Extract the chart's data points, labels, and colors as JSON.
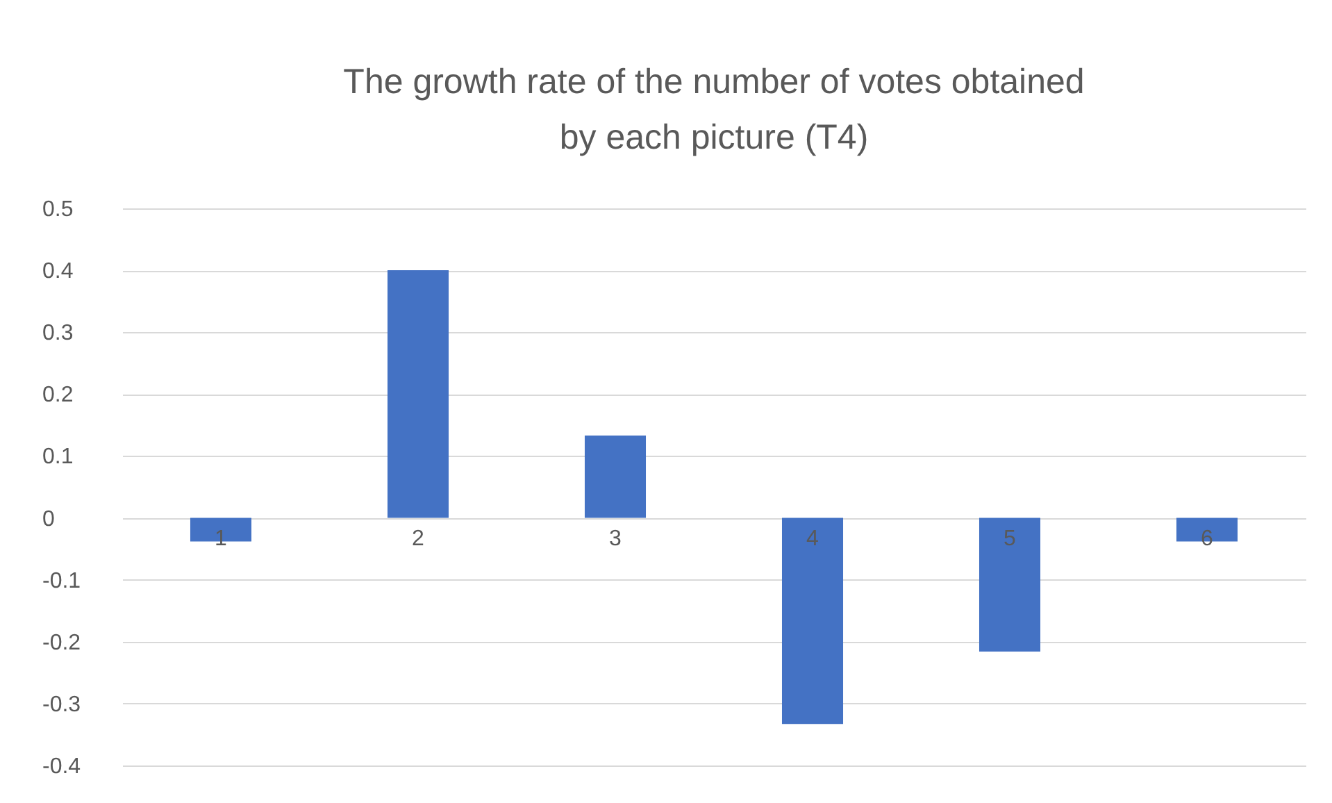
{
  "chart_data": {
    "type": "bar",
    "title": "The growth rate of the number of votes obtained\nby each picture (T4)",
    "categories": [
      "1",
      "2",
      "3",
      "4",
      "5",
      "6"
    ],
    "values": [
      -0.038,
      0.4,
      0.133,
      -0.333,
      -0.216,
      -0.038
    ],
    "color": "#4472c4",
    "ylim": [
      -0.4,
      0.5
    ],
    "yticks": [
      -0.4,
      -0.3,
      -0.2,
      -0.1,
      0,
      0.1,
      0.2,
      0.3,
      0.4,
      0.5
    ],
    "grid": "y"
  }
}
